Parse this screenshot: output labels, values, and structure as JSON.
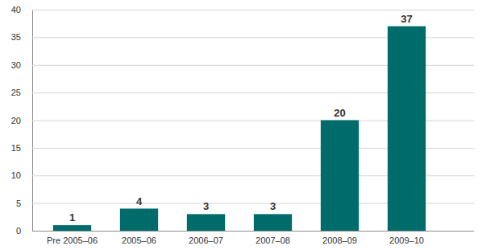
{
  "chart_data": {
    "type": "bar",
    "categories": [
      "Pre 2005–06",
      "2005–06",
      "2006–07",
      "2007–08",
      "2008–09",
      "2009–10"
    ],
    "values": [
      1,
      4,
      3,
      3,
      20,
      37
    ],
    "color": "#006b6b",
    "ylim": [
      0,
      40
    ],
    "yticks": [
      0,
      5,
      10,
      15,
      20,
      25,
      30,
      35,
      40
    ],
    "grid": true,
    "data_labels": true
  }
}
